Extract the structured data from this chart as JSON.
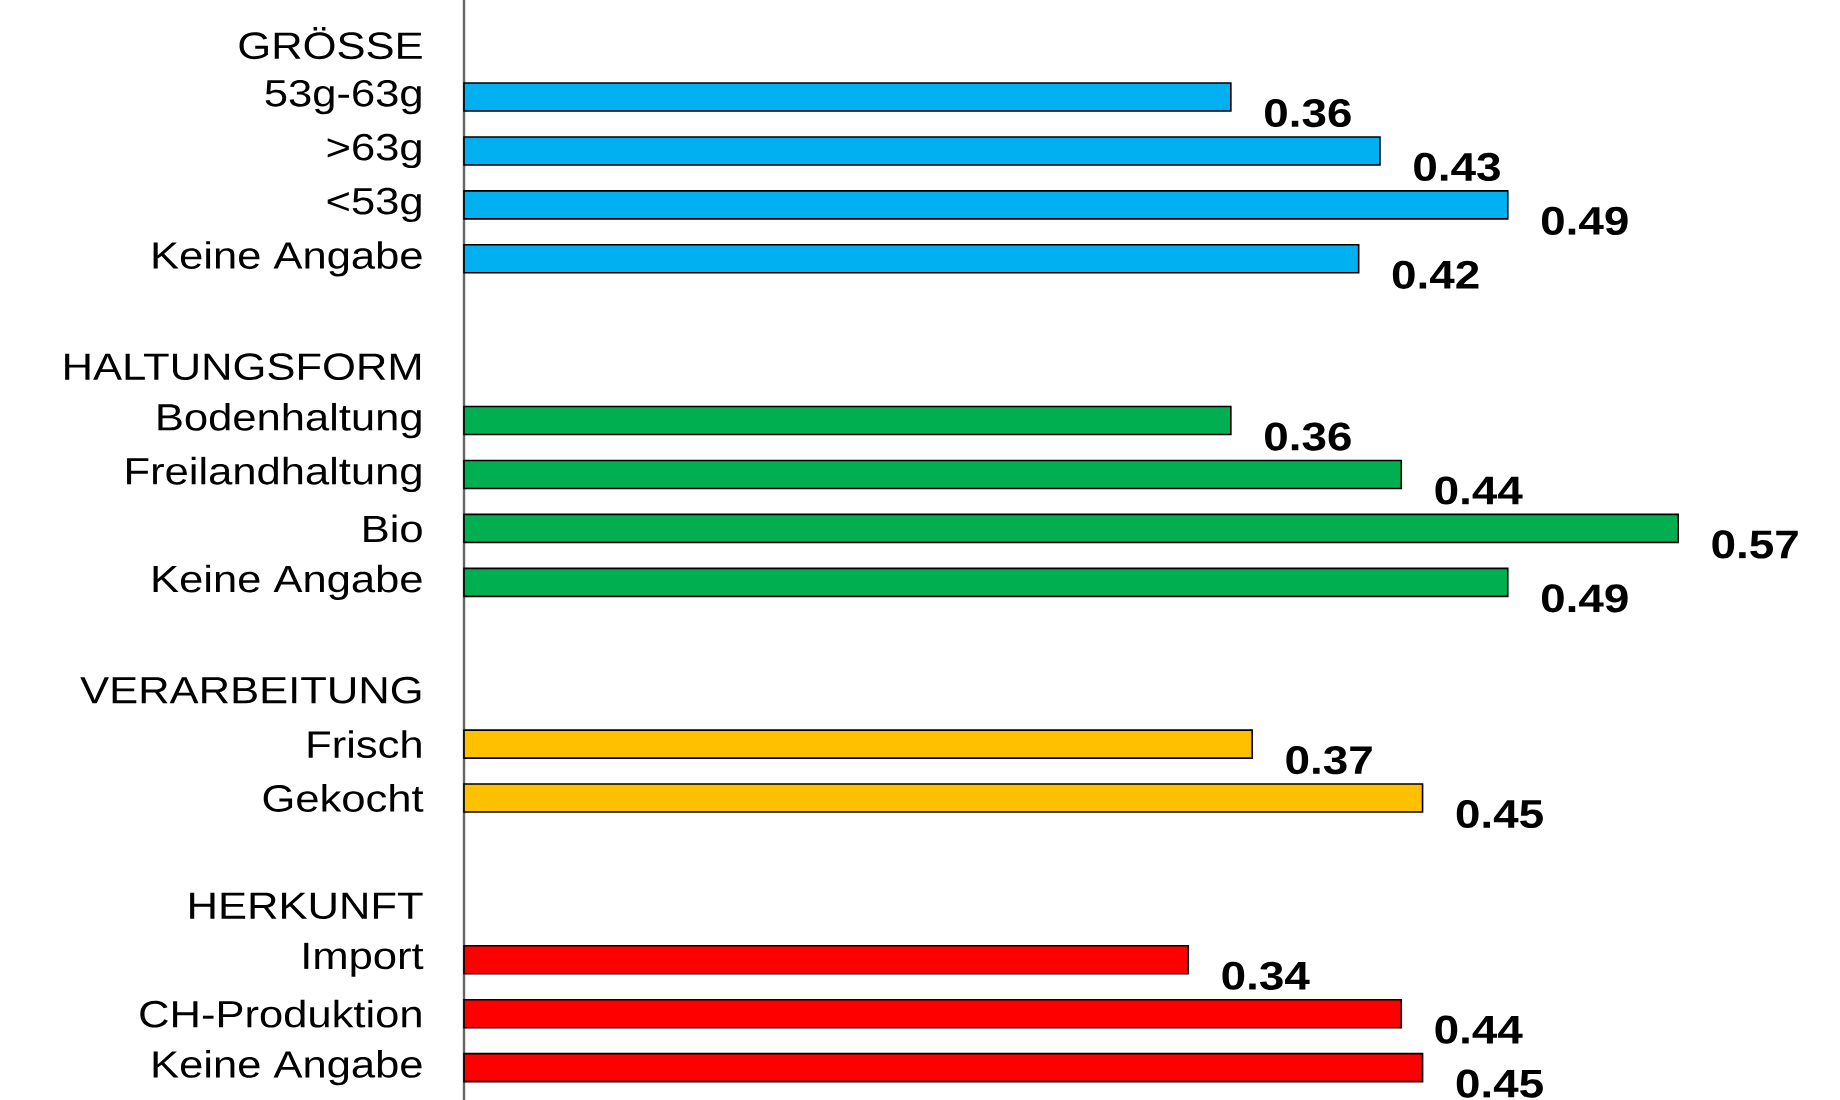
{
  "chart_data": {
    "type": "bar",
    "orientation": "horizontal",
    "data_labels": true,
    "categories": [
      "GRÖSSE",
      "53g-63g",
      ">63g",
      "<53g",
      "Keine Angabe",
      null,
      "HALTUNGSFORM",
      "Bodenhaltung",
      "Freilandhaltung",
      "Bio",
      "Keine Angabe",
      null,
      "VERARBEITUNG",
      "Frisch",
      "Gekocht",
      null,
      "HERKUNFT",
      "Import",
      "CH-Produktion",
      "Keine Angabe"
    ],
    "values": [
      null,
      0.36,
      0.43,
      0.49,
      0.42,
      null,
      null,
      0.36,
      0.44,
      0.57,
      0.49,
      null,
      null,
      0.37,
      0.45,
      null,
      null,
      0.34,
      0.44,
      0.45
    ],
    "colors": [
      null,
      "#00b0f0",
      "#00b0f0",
      "#00b0f0",
      "#00b0f0",
      null,
      null,
      "#00b050",
      "#00b050",
      "#00b050",
      "#00b050",
      null,
      null,
      "#ffc000",
      "#ffc000",
      null,
      null,
      "#ff0000",
      "#ff0000",
      "#ff0000"
    ]
  }
}
